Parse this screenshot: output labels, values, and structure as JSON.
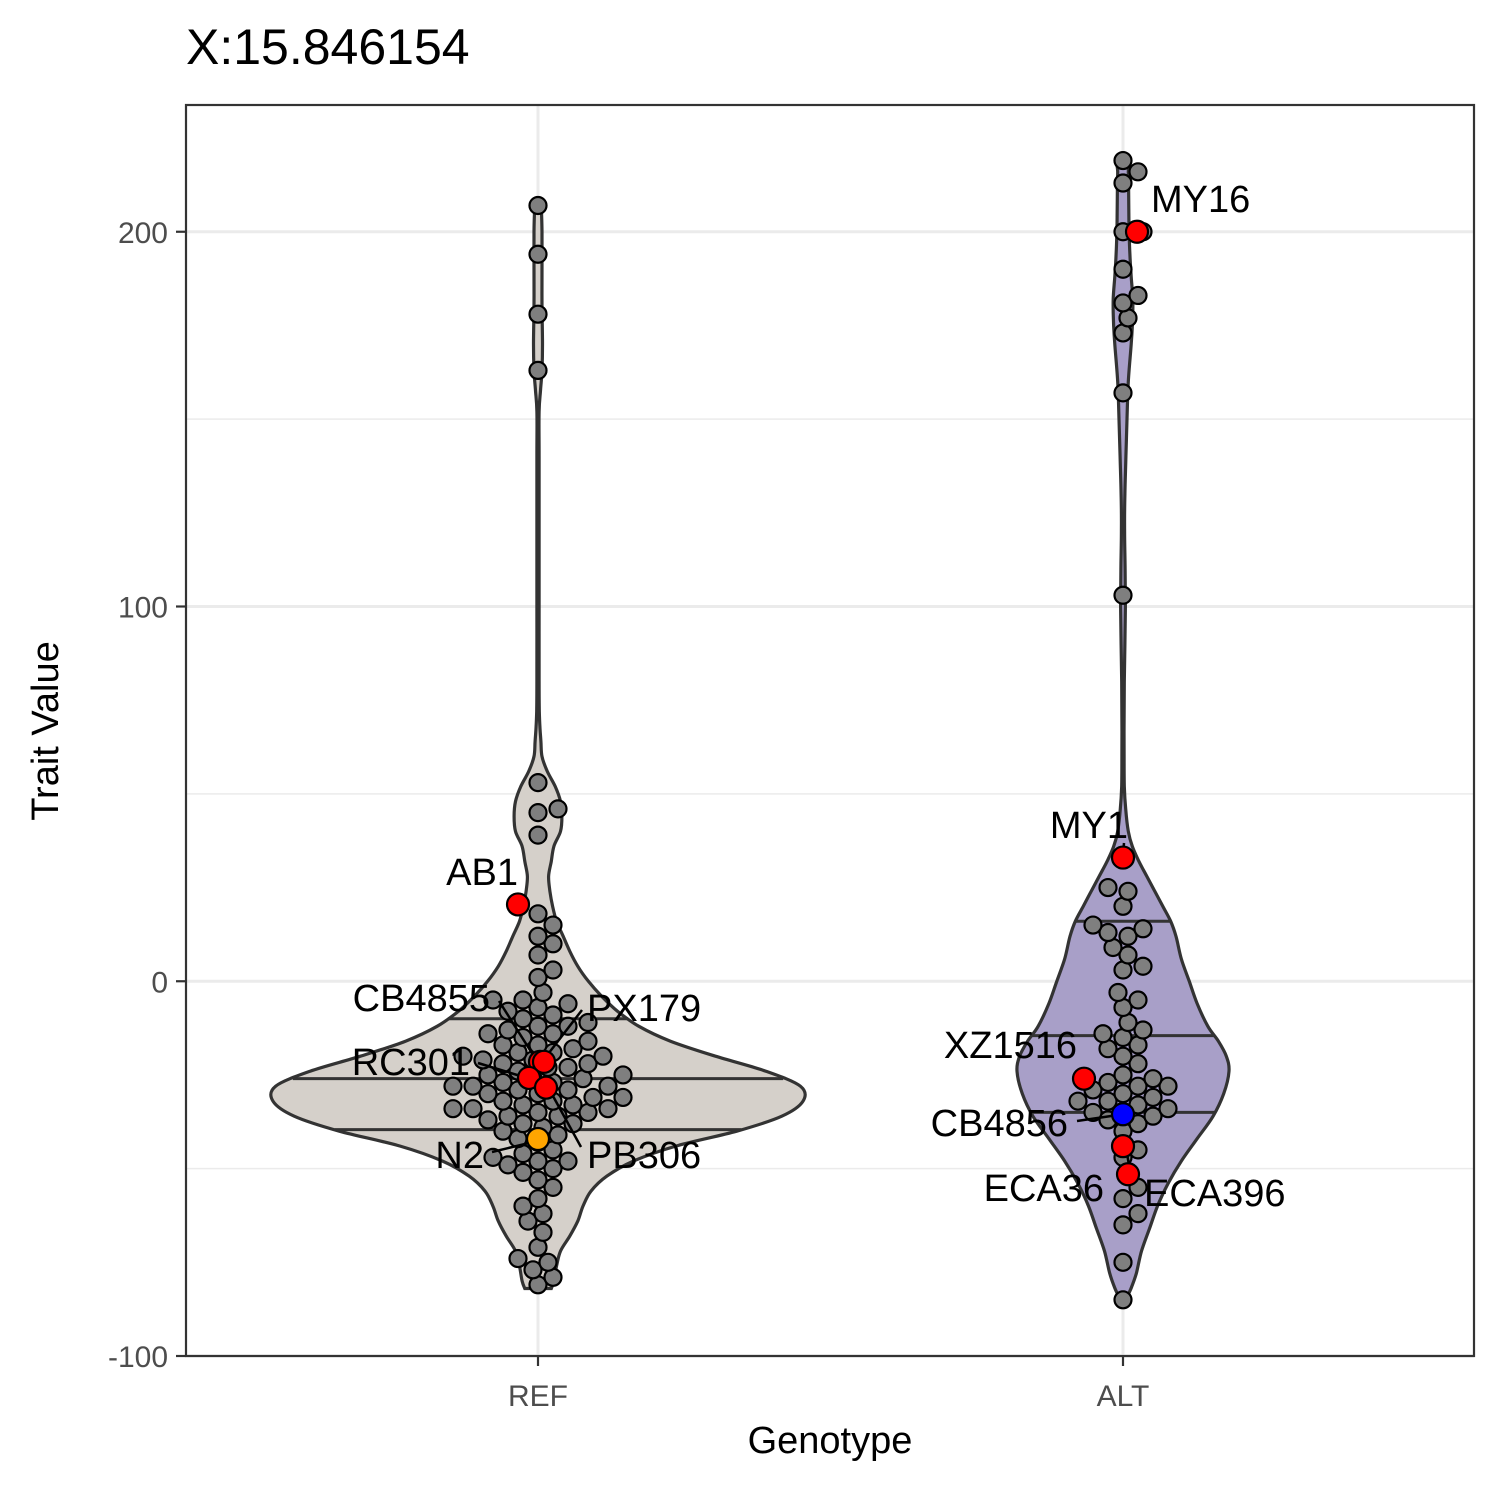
{
  "chart_data": {
    "type": "violin",
    "title": "X:15.846154",
    "xlabel": "Genotype",
    "ylabel": "Trait Value",
    "categories": [
      "REF",
      "ALT"
    ],
    "ylim": [
      -100,
      225
    ],
    "yticks": [
      -100,
      0,
      100,
      200
    ],
    "grid": true,
    "colors": {
      "REF": "#d5d0ca",
      "ALT": "#a89fc8",
      "point": "#7f7f7f",
      "highlight": "#ff0000",
      "N2": "#ffa500",
      "CB4856": "#0000ff",
      "outline": "#333333"
    },
    "groups": [
      {
        "name": "REF",
        "quartiles": [
          -39.6,
          -26,
          -10
        ],
        "violin_profile": [
          [
            -82,
            0.05
          ],
          [
            -80,
            0.06
          ],
          [
            -76,
            0.07
          ],
          [
            -72,
            0.085
          ],
          [
            -68,
            0.12
          ],
          [
            -64,
            0.15
          ],
          [
            -60,
            0.17
          ],
          [
            -56,
            0.2
          ],
          [
            -52,
            0.26
          ],
          [
            -48,
            0.36
          ],
          [
            -44,
            0.52
          ],
          [
            -40,
            0.75
          ],
          [
            -36,
            0.92
          ],
          [
            -32,
            1.0
          ],
          [
            -28,
            0.99
          ],
          [
            -24,
            0.86
          ],
          [
            -20,
            0.67
          ],
          [
            -16,
            0.5
          ],
          [
            -12,
            0.38
          ],
          [
            -8,
            0.3
          ],
          [
            -4,
            0.24
          ],
          [
            0,
            0.19
          ],
          [
            4,
            0.15
          ],
          [
            8,
            0.12
          ],
          [
            12,
            0.095
          ],
          [
            16,
            0.07
          ],
          [
            20,
            0.055
          ],
          [
            24,
            0.045
          ],
          [
            28,
            0.04
          ],
          [
            32,
            0.05
          ],
          [
            36,
            0.06
          ],
          [
            40,
            0.085
          ],
          [
            44,
            0.09
          ],
          [
            48,
            0.085
          ],
          [
            52,
            0.065
          ],
          [
            56,
            0.035
          ],
          [
            60,
            0.015
          ],
          [
            64,
            0.011
          ],
          [
            68,
            0.007
          ],
          [
            72,
            0.005
          ],
          [
            80,
            0.004
          ],
          [
            100,
            0.004
          ],
          [
            120,
            0.004
          ],
          [
            140,
            0.004
          ],
          [
            152,
            0.004
          ],
          [
            158,
            0.01
          ],
          [
            163,
            0.015
          ],
          [
            170,
            0.017
          ],
          [
            180,
            0.015
          ],
          [
            190,
            0.015
          ],
          [
            200,
            0.015
          ],
          [
            206,
            0.013
          ],
          [
            208,
            0.012
          ]
        ],
        "values": [
          207,
          194,
          178,
          163,
          53,
          46,
          45,
          39,
          18,
          15,
          12,
          10,
          7,
          3,
          1,
          -3,
          -5,
          -5,
          -6,
          -7,
          -8,
          -9,
          -10,
          -11,
          -12,
          -12,
          -13,
          -14,
          -14,
          -15,
          -16,
          -17,
          -17,
          -18,
          -19,
          -19,
          -20,
          -20,
          -21,
          -21,
          -22,
          -22,
          -23,
          -23,
          -24,
          -25,
          -25,
          -26,
          -26,
          -27,
          -27,
          -28,
          -28,
          -28,
          -29,
          -29,
          -30,
          -30,
          -31,
          -31,
          -32,
          -32,
          -33,
          -33,
          -34,
          -34,
          -34,
          -35,
          -35,
          -36,
          -36,
          -37,
          -38,
          -38,
          -39,
          -40,
          -41,
          -42,
          -43,
          -45,
          -46,
          -47,
          -48,
          -48,
          -49,
          -50,
          -51,
          -53,
          -55,
          -58,
          -60,
          -62,
          -64,
          -67,
          -71,
          -74,
          -75,
          -77,
          -79,
          -81
        ],
        "highlighted": [
          {
            "label": "AB1",
            "value": 20.5
          },
          {
            "label": "CB4855",
            "value": -21.5
          },
          {
            "label": "PX179",
            "value": -21.5
          },
          {
            "label": "RC301",
            "value": -25.8
          },
          {
            "label": "PB306",
            "value": -28.4
          },
          {
            "label": "N2",
            "value": -42.1
          }
        ]
      },
      {
        "name": "ALT",
        "quartiles": [
          -35,
          -14.5,
          16
        ],
        "violin_profile": [
          [
            -85,
            0.01
          ],
          [
            -82,
            0.03
          ],
          [
            -78,
            0.05
          ],
          [
            -72,
            0.07
          ],
          [
            -66,
            0.1
          ],
          [
            -60,
            0.13
          ],
          [
            -54,
            0.17
          ],
          [
            -48,
            0.22
          ],
          [
            -42,
            0.28
          ],
          [
            -36,
            0.34
          ],
          [
            -30,
            0.38
          ],
          [
            -24,
            0.4
          ],
          [
            -20,
            0.39
          ],
          [
            -16,
            0.36
          ],
          [
            -12,
            0.32
          ],
          [
            -6,
            0.28
          ],
          [
            0,
            0.25
          ],
          [
            6,
            0.22
          ],
          [
            12,
            0.2
          ],
          [
            16,
            0.18
          ],
          [
            20,
            0.15
          ],
          [
            24,
            0.12
          ],
          [
            28,
            0.09
          ],
          [
            32,
            0.06
          ],
          [
            36,
            0.035
          ],
          [
            40,
            0.02
          ],
          [
            46,
            0.01
          ],
          [
            52,
            0.005
          ],
          [
            60,
            0.004
          ],
          [
            70,
            0.004
          ],
          [
            80,
            0.005
          ],
          [
            90,
            0.007
          ],
          [
            100,
            0.009
          ],
          [
            110,
            0.008
          ],
          [
            120,
            0.006
          ],
          [
            130,
            0.007
          ],
          [
            140,
            0.011
          ],
          [
            150,
            0.015
          ],
          [
            160,
            0.02
          ],
          [
            170,
            0.031
          ],
          [
            176,
            0.036
          ],
          [
            182,
            0.037
          ],
          [
            188,
            0.031
          ],
          [
            194,
            0.026
          ],
          [
            200,
            0.023
          ],
          [
            206,
            0.022
          ],
          [
            212,
            0.021
          ],
          [
            216,
            0.02
          ],
          [
            219,
            0.02
          ]
        ],
        "values": [
          219,
          216,
          213,
          200,
          200,
          190,
          183,
          181,
          177,
          173,
          157,
          103,
          25,
          24,
          20,
          15,
          14,
          13,
          12,
          9,
          7,
          4,
          3,
          -3,
          -5,
          -7,
          -11,
          -13,
          -14,
          -15,
          -17,
          -18,
          -20,
          -22,
          -25,
          -26,
          -27,
          -28,
          -28,
          -29,
          -30,
          -31,
          -32,
          -32,
          -33,
          -34,
          -35,
          -35,
          -36,
          -37,
          -38,
          -40,
          -45,
          -47,
          -55,
          -58,
          -62,
          -65,
          -75,
          -85
        ],
        "highlighted": [
          {
            "label": "MY16",
            "value": 200
          },
          {
            "label": "MY1",
            "value": 33
          },
          {
            "label": "XZ1516",
            "value": -26
          },
          {
            "label": "CB4856",
            "value": -35.5
          },
          {
            "label": "ECA36",
            "value": -44
          },
          {
            "label": "ECA396",
            "value": -51.5
          }
        ]
      }
    ]
  }
}
